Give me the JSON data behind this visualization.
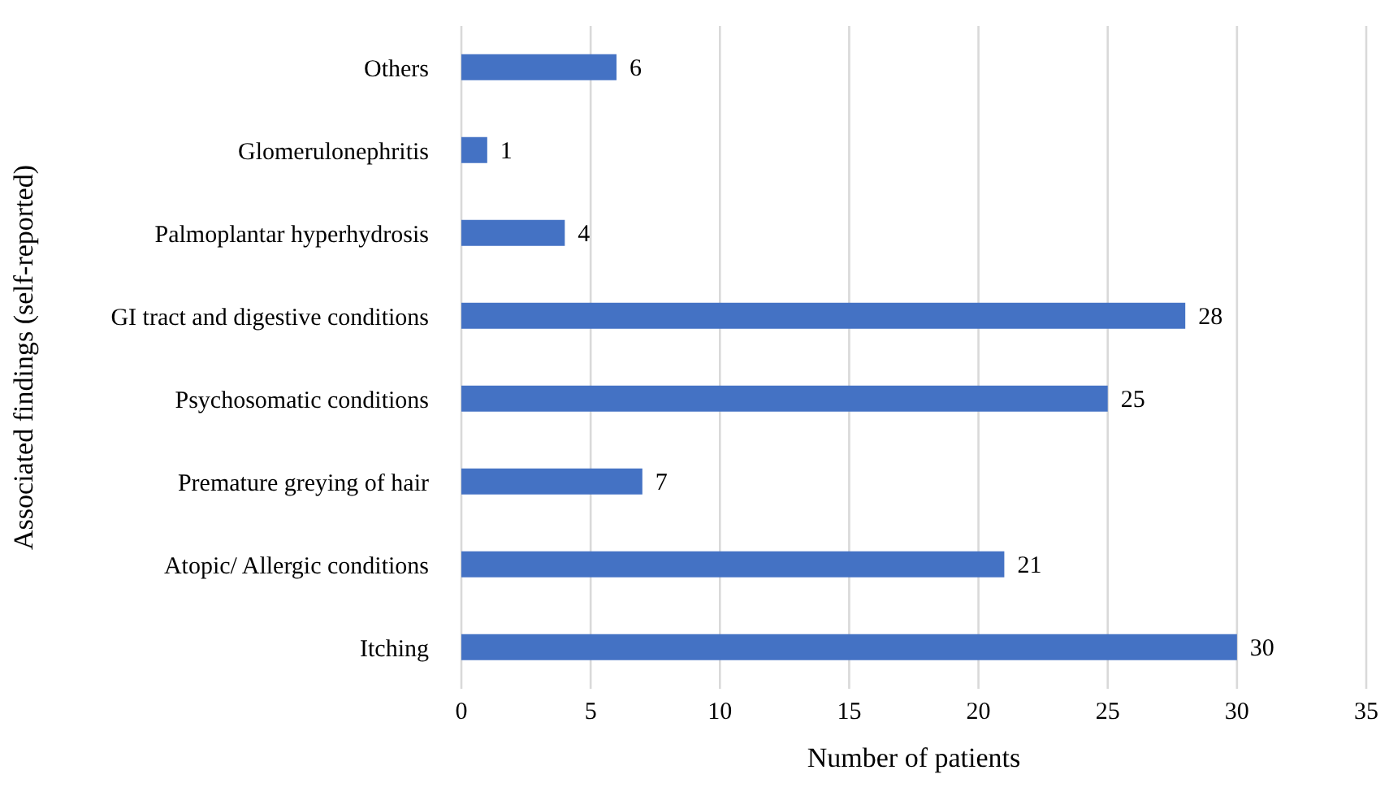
{
  "chart_data": {
    "type": "bar",
    "orientation": "horizontal",
    "xlabel": "Number of patients",
    "ylabel": "Associated findings (self-reported)",
    "categories": [
      "Others",
      "Glomerulonephritis",
      "Palmoplantar hyperhydrosis",
      "GI tract and digestive conditions",
      "Psychosomatic conditions",
      "Premature greying of hair",
      "Atopic/ Allergic conditions",
      "Itching"
    ],
    "values": [
      6,
      1,
      4,
      28,
      25,
      7,
      21,
      30
    ],
    "color": "#4472c4",
    "xlim": [
      0,
      35
    ],
    "xticks": [
      0,
      5,
      10,
      15,
      20,
      25,
      30,
      35
    ],
    "grid": "x",
    "data_labels": true
  }
}
